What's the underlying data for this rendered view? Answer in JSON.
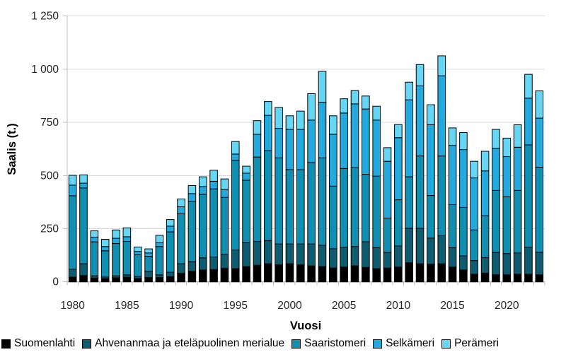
{
  "chart": {
    "y_axis_title": "Saalis (t.)",
    "x_axis_title": "Vuosi",
    "y_ticks": [
      {
        "value": 0,
        "label": "0"
      },
      {
        "value": 250,
        "label": "250"
      },
      {
        "value": 500,
        "label": "500"
      },
      {
        "value": 750,
        "label": "750"
      },
      {
        "value": 1000,
        "label": "1 000"
      },
      {
        "value": 1250,
        "label": "1 250"
      }
    ],
    "x_tick_labels": [
      "1980",
      "1985",
      "1990",
      "1995",
      "2000",
      "2005",
      "2010",
      "2015",
      "2020"
    ],
    "gridline_color": "#d9d9d9",
    "axis_line_color": "#bfbfbf",
    "tick_text_color": "#262626",
    "bar_outline_color": "#000000"
  },
  "chart_data": {
    "type": "bar",
    "stacked": true,
    "title": "",
    "xlabel": "Vuosi",
    "ylabel": "Saalis (t.)",
    "ylim": [
      0,
      1250
    ],
    "grid": true,
    "legend_position": "bottom",
    "x": [
      1980,
      1981,
      1982,
      1983,
      1984,
      1985,
      1986,
      1987,
      1988,
      1989,
      1990,
      1991,
      1992,
      1993,
      1994,
      1995,
      1996,
      1997,
      1998,
      1999,
      2000,
      2001,
      2002,
      2003,
      2004,
      2005,
      2006,
      2007,
      2008,
      2009,
      2010,
      2011,
      2012,
      2013,
      2014,
      2015,
      2016,
      2017,
      2018,
      2019,
      2020,
      2021,
      2022,
      2023
    ],
    "series": [
      {
        "name": "Suomenlahti",
        "color": "#000000",
        "values": [
          22,
          30,
          18,
          15,
          19,
          22,
          16,
          20,
          20,
          25,
          40,
          50,
          56,
          58,
          64,
          62,
          72,
          78,
          85,
          80,
          85,
          80,
          75,
          72,
          65,
          70,
          75,
          68,
          62,
          65,
          70,
          90,
          85,
          83,
          85,
          70,
          56,
          36,
          41,
          33,
          33,
          36,
          36,
          33
        ]
      },
      {
        "name": "Ahvenanmaa ja eteläpuolinen merialue",
        "color": "#0e5c70",
        "values": [
          37,
          55,
          10,
          8,
          9,
          11,
          9,
          30,
          13,
          20,
          45,
          45,
          57,
          59,
          66,
          88,
          113,
          112,
          109,
          98,
          93,
          98,
          103,
          100,
          91,
          93,
          91,
          121,
          99,
          74,
          99,
          162,
          167,
          123,
          132,
          91,
          66,
          64,
          73,
          106,
          100,
          100,
          127,
          106
        ]
      },
      {
        "name": "Saaristomeri",
        "color": "#0f8fb2",
        "values": [
          346,
          357,
          160,
          123,
          152,
          157,
          103,
          70,
          133,
          190,
          235,
          283,
          299,
          320,
          267,
          421,
          293,
          397,
          423,
          405,
          350,
          350,
          383,
          411,
          294,
          370,
          371,
          317,
          336,
          161,
          217,
          242,
          340,
          200,
          375,
          202,
          228,
          144,
          197,
          291,
          267,
          294,
          481,
          400
        ]
      },
      {
        "name": "Selkämeri",
        "color": "#22aadf",
        "values": [
          50,
          22,
          22,
          20,
          25,
          22,
          15,
          16,
          18,
          27,
          33,
          37,
          36,
          36,
          37,
          30,
          33,
          107,
          166,
          139,
          189,
          189,
          200,
          261,
          244,
          261,
          300,
          307,
          264,
          267,
          292,
          362,
          330,
          333,
          377,
          279,
          272,
          245,
          211,
          198,
          189,
          203,
          220,
          231
        ]
      },
      {
        "name": "Perämeri",
        "color": "#66d6f5",
        "values": [
          46,
          39,
          30,
          34,
          39,
          42,
          21,
          19,
          35,
          31,
          37,
          38,
          46,
          52,
          50,
          59,
          33,
          64,
          65,
          98,
          64,
          86,
          124,
          146,
          87,
          67,
          63,
          61,
          65,
          64,
          62,
          83,
          100,
          94,
          94,
          82,
          80,
          78,
          92,
          89,
          87,
          106,
          112,
          128
        ]
      }
    ]
  }
}
